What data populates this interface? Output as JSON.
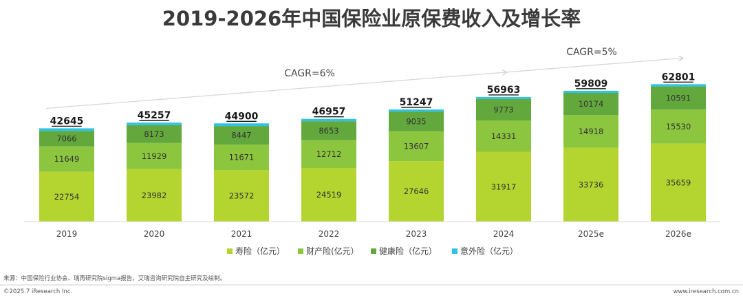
{
  "colors": {
    "life": "#b4d430",
    "property": "#8cc63f",
    "health": "#62a83c",
    "accident": "#2ec3e6",
    "trend": "#d8d8d8"
  },
  "chart_data": {
    "type": "bar",
    "stacked": true,
    "title": "2019-2026年中国保险业原保费收入及增长率",
    "categories": [
      "2019",
      "2020",
      "2021",
      "2022",
      "2023",
      "2024",
      "2025e",
      "2026e"
    ],
    "series": [
      {
        "name": "寿险（亿元）",
        "key": "life",
        "values": [
          22754,
          23982,
          23572,
          24519,
          27646,
          31917,
          33736,
          35659
        ]
      },
      {
        "name": "财产险(亿元）",
        "key": "property",
        "values": [
          11649,
          11929,
          11671,
          12712,
          13607,
          14331,
          14918,
          15530
        ]
      },
      {
        "name": "健康险（亿元）",
        "key": "health",
        "values": [
          7066,
          8173,
          8447,
          8653,
          9035,
          9773,
          10174,
          10591
        ]
      },
      {
        "name": "意外险（亿元）",
        "key": "accident",
        "values": [
          1176,
          1173,
          1210,
          1073,
          959,
          942,
          981,
          1021
        ]
      }
    ],
    "totals": [
      42645,
      45257,
      44900,
      46957,
      51247,
      56963,
      59809,
      62801
    ],
    "annotations": [
      {
        "text": "CAGR=6%",
        "from": "2019",
        "to": "2024"
      },
      {
        "text": "CAGR=5%",
        "from": "2024",
        "to": "2026e"
      }
    ],
    "ylim": [
      0,
      70000
    ],
    "legend_position": "bottom",
    "grid": false
  },
  "footer": {
    "source": "来源：中国保险行业协会、瑞再研究院sigma报告，艾瑞咨询研究院自主研究及绘制。",
    "copyright": "©2025.7 iResearch Inc.",
    "website": "www.iresearch.com.cn"
  }
}
